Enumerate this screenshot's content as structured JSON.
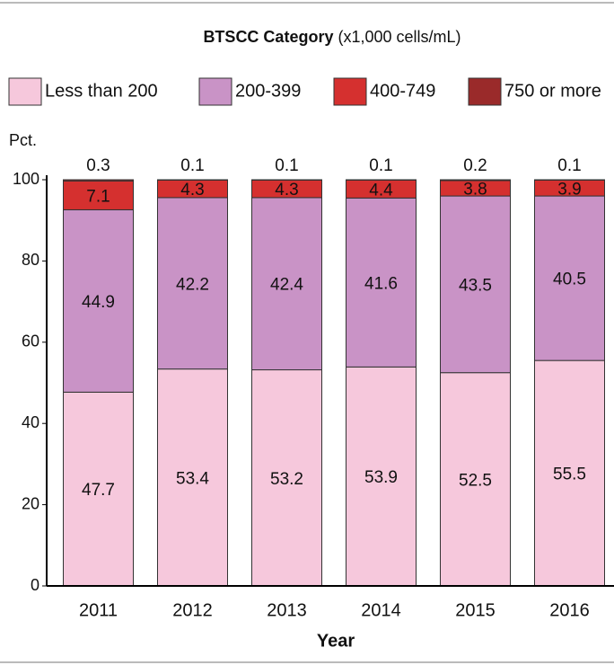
{
  "chart_data": {
    "type": "stacked_bar",
    "title": "BTSCC Category",
    "title_note": "(x1,000 cells/mL)",
    "y_label": "Pct.",
    "x_label": "Year",
    "categories": [
      "2011",
      "2012",
      "2013",
      "2014",
      "2015",
      "2016"
    ],
    "series": [
      {
        "name": "Less than 200",
        "color": "#f6c8dc",
        "values": [
          47.7,
          53.4,
          53.2,
          53.9,
          52.5,
          55.5
        ]
      },
      {
        "name": "200-399",
        "color": "#c993c6",
        "values": [
          44.9,
          42.2,
          42.4,
          41.6,
          43.5,
          40.5
        ]
      },
      {
        "name": "400-749",
        "color": "#d5302f",
        "values": [
          7.1,
          4.3,
          4.3,
          4.4,
          3.8,
          3.9
        ]
      },
      {
        "name": "750 or more",
        "color": "#9a2a2a",
        "values": [
          0.3,
          0.1,
          0.1,
          0.1,
          0.2,
          0.1
        ]
      }
    ],
    "ylim": [
      0,
      100
    ],
    "yticks": [
      0,
      20,
      40,
      60,
      80,
      100
    ]
  }
}
